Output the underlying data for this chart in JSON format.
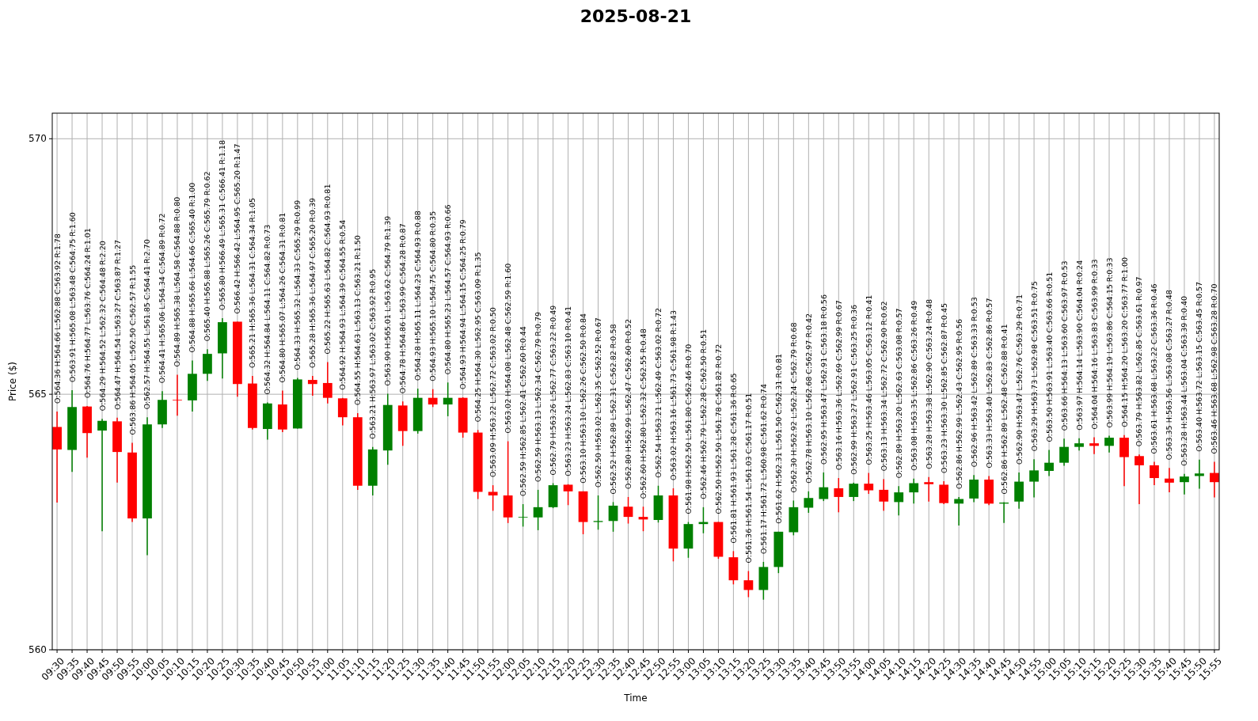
{
  "chart_data": {
    "type": "candlestick",
    "title": "2025-08-21",
    "xlabel": "Time",
    "ylabel": "Price ($)",
    "ylim": [
      560,
      570.5
    ],
    "yticks": [
      560,
      565,
      570
    ],
    "grid": true,
    "categories": [
      "09:30",
      "09:35",
      "09:40",
      "09:45",
      "09:50",
      "09:55",
      "10:00",
      "10:05",
      "10:10",
      "10:15",
      "10:20",
      "10:25",
      "10:30",
      "10:35",
      "10:40",
      "10:45",
      "10:50",
      "10:55",
      "11:00",
      "11:05",
      "11:10",
      "11:15",
      "11:20",
      "11:25",
      "11:30",
      "11:35",
      "11:40",
      "11:45",
      "11:50",
      "11:55",
      "12:00",
      "12:05",
      "12:10",
      "12:15",
      "12:20",
      "12:25",
      "12:30",
      "12:35",
      "12:40",
      "12:45",
      "12:50",
      "12:55",
      "13:00",
      "13:05",
      "13:10",
      "13:15",
      "13:20",
      "13:25",
      "13:30",
      "13:35",
      "13:40",
      "13:45",
      "13:50",
      "13:55",
      "14:00",
      "14:05",
      "14:10",
      "14:15",
      "14:20",
      "14:25",
      "14:30",
      "14:35",
      "14:40",
      "14:45",
      "14:50",
      "14:55",
      "15:00",
      "15:05",
      "15:10",
      "15:15",
      "15:20",
      "15:25",
      "15:30",
      "15:35",
      "15:40",
      "15:45",
      "15:50",
      "15:55"
    ],
    "ohlc": [
      [
        564.36,
        564.66,
        562.88,
        563.92
      ],
      [
        563.91,
        565.08,
        563.48,
        564.75
      ],
      [
        564.76,
        564.77,
        563.76,
        564.24
      ],
      [
        564.29,
        564.52,
        562.32,
        564.48
      ],
      [
        564.47,
        564.54,
        563.27,
        563.87
      ],
      [
        563.86,
        564.05,
        562.5,
        562.57
      ],
      [
        562.57,
        564.55,
        561.85,
        564.41
      ],
      [
        564.41,
        565.06,
        564.34,
        564.89
      ],
      [
        564.89,
        565.38,
        564.58,
        564.88
      ],
      [
        564.88,
        565.66,
        564.66,
        565.4
      ],
      [
        565.4,
        565.88,
        565.26,
        565.79
      ],
      [
        565.8,
        566.49,
        565.31,
        566.41
      ],
      [
        566.42,
        566.42,
        564.95,
        565.2
      ],
      [
        565.21,
        565.36,
        564.31,
        564.34
      ],
      [
        564.32,
        564.84,
        564.11,
        564.82
      ],
      [
        564.8,
        565.07,
        564.26,
        564.31
      ],
      [
        564.33,
        565.32,
        564.33,
        565.29
      ],
      [
        565.28,
        565.36,
        564.97,
        565.2
      ],
      [
        565.22,
        565.63,
        564.82,
        564.93
      ],
      [
        564.92,
        564.93,
        564.39,
        564.55
      ],
      [
        564.55,
        564.63,
        563.13,
        563.21
      ],
      [
        563.21,
        563.97,
        563.02,
        563.92
      ],
      [
        563.9,
        565.01,
        563.62,
        564.79
      ],
      [
        564.78,
        564.86,
        563.99,
        564.28
      ],
      [
        564.28,
        565.11,
        564.23,
        564.93
      ],
      [
        564.93,
        565.1,
        564.75,
        564.8
      ],
      [
        564.8,
        565.23,
        564.57,
        564.93
      ],
      [
        564.93,
        564.94,
        564.15,
        564.25
      ],
      [
        564.25,
        564.3,
        562.95,
        563.09
      ],
      [
        563.09,
        563.22,
        562.72,
        563.02
      ],
      [
        563.02,
        564.08,
        562.48,
        562.59
      ],
      [
        562.59,
        562.85,
        562.41,
        562.6
      ],
      [
        562.59,
        563.13,
        562.34,
        562.79
      ],
      [
        562.79,
        563.26,
        562.77,
        563.22
      ],
      [
        563.23,
        563.24,
        562.83,
        563.1
      ],
      [
        563.1,
        563.1,
        562.26,
        562.5
      ],
      [
        562.5,
        563.02,
        562.35,
        562.52
      ],
      [
        562.52,
        562.89,
        562.31,
        562.82
      ],
      [
        562.8,
        562.99,
        562.47,
        562.6
      ],
      [
        562.6,
        562.8,
        562.32,
        562.55
      ],
      [
        562.54,
        563.21,
        562.49,
        563.02
      ],
      [
        563.02,
        563.16,
        561.73,
        561.98
      ],
      [
        561.98,
        562.5,
        561.8,
        562.46
      ],
      [
        562.46,
        562.79,
        562.28,
        562.5
      ],
      [
        562.5,
        562.5,
        561.78,
        561.82
      ],
      [
        561.81,
        561.93,
        561.28,
        561.36
      ],
      [
        561.36,
        561.54,
        561.03,
        561.17
      ],
      [
        561.17,
        561.72,
        560.98,
        561.62
      ],
      [
        561.62,
        562.31,
        561.5,
        562.31
      ],
      [
        562.3,
        562.92,
        562.24,
        562.79
      ],
      [
        562.78,
        563.1,
        562.68,
        562.97
      ],
      [
        562.95,
        563.47,
        562.91,
        563.18
      ],
      [
        563.16,
        563.36,
        562.69,
        562.99
      ],
      [
        562.99,
        563.27,
        562.91,
        563.25
      ],
      [
        563.25,
        563.46,
        563.05,
        563.12
      ],
      [
        563.13,
        563.34,
        562.72,
        562.9
      ],
      [
        562.89,
        563.2,
        562.63,
        563.08
      ],
      [
        563.08,
        563.35,
        562.86,
        563.26
      ],
      [
        563.28,
        563.38,
        562.9,
        563.24
      ],
      [
        563.23,
        563.3,
        562.85,
        562.87
      ],
      [
        562.86,
        562.99,
        562.43,
        562.95
      ],
      [
        562.96,
        563.42,
        562.89,
        563.33
      ],
      [
        563.33,
        563.4,
        562.83,
        562.86
      ],
      [
        562.86,
        562.89,
        562.48,
        562.88
      ],
      [
        562.9,
        563.47,
        562.76,
        563.29
      ],
      [
        563.29,
        563.73,
        562.98,
        563.51
      ],
      [
        563.5,
        563.91,
        563.4,
        563.66
      ],
      [
        563.66,
        564.13,
        563.6,
        563.97
      ],
      [
        563.97,
        564.14,
        563.9,
        564.04
      ],
      [
        564.04,
        564.16,
        563.83,
        563.99
      ],
      [
        563.99,
        564.19,
        563.86,
        564.15
      ],
      [
        564.15,
        564.2,
        563.2,
        563.77
      ],
      [
        563.79,
        563.82,
        562.85,
        563.61
      ],
      [
        563.61,
        563.68,
        563.22,
        563.36
      ],
      [
        563.35,
        563.56,
        563.08,
        563.27
      ],
      [
        563.28,
        563.44,
        563.04,
        563.39
      ],
      [
        563.4,
        563.72,
        563.15,
        563.45
      ],
      [
        563.46,
        563.68,
        562.98,
        563.28
      ]
    ],
    "colors": [
      "#ff0000",
      "#008000",
      "#ff0000",
      "#008000",
      "#ff0000",
      "#ff0000",
      "#008000",
      "#008000",
      "#ff0000",
      "#008000",
      "#008000",
      "#008000",
      "#ff0000",
      "#ff0000",
      "#008000",
      "#ff0000",
      "#008000",
      "#ff0000",
      "#ff0000",
      "#ff0000",
      "#ff0000",
      "#008000",
      "#008000",
      "#ff0000",
      "#008000",
      "#ff0000",
      "#008000",
      "#ff0000",
      "#ff0000",
      "#ff0000",
      "#ff0000",
      "#008000",
      "#008000",
      "#008000",
      "#ff0000",
      "#ff0000",
      "#008000",
      "#008000",
      "#ff0000",
      "#ff0000",
      "#008000",
      "#ff0000",
      "#008000",
      "#008000",
      "#ff0000",
      "#ff0000",
      "#ff0000",
      "#008000",
      "#008000",
      "#008000",
      "#008000",
      "#008000",
      "#ff0000",
      "#008000",
      "#ff0000",
      "#ff0000",
      "#008000",
      "#008000",
      "#ff0000",
      "#ff0000",
      "#008000",
      "#008000",
      "#ff0000",
      "#008000",
      "#008000",
      "#008000",
      "#008000",
      "#008000",
      "#008000",
      "#ff0000",
      "#008000",
      "#ff0000",
      "#ff0000",
      "#ff0000",
      "#ff0000",
      "#008000",
      "#008000",
      "#ff0000"
    ],
    "value_labels": [
      "O:564.36 H:564.66 L:562.88 C:563.92 R:1.78",
      "O:563.91 H:565.08 L:563.48 C:564.75 R:1.60",
      "O:564.76 H:564.77 L:563.76 C:564.24 R:1.01",
      "O:564.29 H:564.52 L:562.32 C:564.48 R:2.20",
      "O:564.47 H:564.54 L:563.27 C:563.87 R:1.27",
      "O:563.86 H:564.05 L:562.50 C:562.57 R:1.55",
      "O:562.57 H:564.55 L:561.85 C:564.41 R:2.70",
      "O:564.41 H:565.06 L:564.34 C:564.89 R:0.72",
      "O:564.89 H:565.38 L:564.58 C:564.88 R:0.80",
      "O:564.88 H:565.66 L:564.66 C:565.40 R:1.00",
      "O:565.40 H:565.88 L:565.26 C:565.79 R:0.62",
      "O:565.80 H:566.49 L:565.31 C:566.41 R:1.18",
      "O:566.42 H:566.42 L:564.95 C:565.20 R:1.47",
      "O:565.21 H:565.36 L:564.31 C:564.34 R:1.05",
      "O:564.32 H:564.84 L:564.11 C:564.82 R:0.73",
      "O:564.80 H:565.07 L:564.26 C:564.31 R:0.81",
      "O:564.33 H:565.32 L:564.33 C:565.29 R:0.99",
      "O:565.28 H:565.36 L:564.97 C:565.20 R:0.39",
      "O:565.22 H:565.63 L:564.82 C:564.93 R:0.81",
      "O:564.92 H:564.93 L:564.39 C:564.55 R:0.54",
      "O:564.55 H:564.63 L:563.13 C:563.21 R:1.50",
      "O:563.21 H:563.97 L:563.02 C:563.92 R:0.95",
      "O:563.90 H:565.01 L:563.62 C:564.79 R:1.39",
      "O:564.78 H:564.86 L:563.99 C:564.28 R:0.87",
      "O:564.28 H:565.11 L:564.23 C:564.93 R:0.88",
      "O:564.93 H:565.10 L:564.75 C:564.80 R:0.35",
      "O:564.80 H:565.23 L:564.57 C:564.93 R:0.66",
      "O:564.93 H:564.94 L:564.15 C:564.25 R:0.79",
      "O:564.25 H:564.30 L:562.95 C:563.09 R:1.35",
      "O:563.09 H:563.22 L:562.72 C:563.02 R:0.50",
      "O:563.02 H:564.08 L:562.48 C:562.59 R:1.60",
      "O:562.59 H:562.85 L:562.41 C:562.60 R:0.44",
      "O:562.59 H:563.13 L:562.34 C:562.79 R:0.79",
      "O:562.79 H:563.26 L:562.77 C:563.22 R:0.49",
      "O:563.23 H:563.24 L:562.83 C:563.10 R:0.41",
      "O:563.10 H:563.10 L:562.26 C:562.50 R:0.84",
      "O:562.50 H:563.02 L:562.35 C:562.52 R:0.67",
      "O:562.52 H:562.89 L:562.31 C:562.82 R:0.58",
      "O:562.80 H:562.99 L:562.47 C:562.60 R:0.52",
      "O:562.60 H:562.80 L:562.32 C:562.55 R:0.48",
      "O:562.54 H:563.21 L:562.49 C:563.02 R:0.72",
      "O:563.02 H:563.16 L:561.73 C:561.98 R:1.43",
      "O:561.98 H:562.50 L:561.80 C:562.46 R:0.70",
      "O:562.46 H:562.79 L:562.28 C:562.50 R:0.51",
      "O:562.50 H:562.50 L:561.78 C:561.82 R:0.72",
      "O:561.81 H:561.93 L:561.28 C:561.36 R:0.65",
      "O:561.36 H:561.54 L:561.03 C:561.17 R:0.51",
      "O:561.17 H:561.72 L:560.98 C:561.62 R:0.74",
      "O:561.62 H:562.31 L:561.50 C:562.31 R:0.81",
      "O:562.30 H:562.92 L:562.24 C:562.79 R:0.68",
      "O:562.78 H:563.10 L:562.68 C:562.97 R:0.42",
      "O:562.95 H:563.47 L:562.91 C:563.18 R:0.56",
      "O:563.16 H:563.36 L:562.69 C:562.99 R:0.67",
      "O:562.99 H:563.27 L:562.91 C:563.25 R:0.36",
      "O:563.25 H:563.46 L:563.05 C:563.12 R:0.41",
      "O:563.13 H:563.34 L:562.72 C:562.90 R:0.62",
      "O:562.89 H:563.20 L:562.63 C:563.08 R:0.57",
      "O:563.08 H:563.35 L:562.86 C:563.26 R:0.49",
      "O:563.28 H:563.38 L:562.90 C:563.24 R:0.48",
      "O:563.23 H:563.30 L:562.85 C:562.87 R:0.45",
      "O:562.86 H:562.99 L:562.43 C:562.95 R:0.56",
      "O:562.96 H:563.42 L:562.89 C:563.33 R:0.53",
      "O:563.33 H:563.40 L:562.83 C:562.86 R:0.57",
      "O:562.86 H:562.89 L:562.48 C:562.88 R:0.41",
      "O:562.90 H:563.47 L:562.76 C:563.29 R:0.71",
      "O:563.29 H:563.73 L:562.98 C:563.51 R:0.75",
      "O:563.50 H:563.91 L:563.40 C:563.66 R:0.51",
      "O:563.66 H:564.13 L:563.60 C:563.97 R:0.53",
      "O:563.97 H:564.14 L:563.90 C:564.04 R:0.24",
      "O:564.04 H:564.16 L:563.83 C:563.99 R:0.33",
      "O:563.99 H:564.19 L:563.86 C:564.15 R:0.33",
      "O:564.15 H:564.20 L:563.20 C:563.77 R:1.00",
      "O:563.79 H:563.82 L:562.85 C:563.61 R:0.97",
      "O:563.61 H:563.68 L:563.22 C:563.36 R:0.46",
      "O:563.35 H:563.56 L:563.08 C:563.27 R:0.48",
      "O:563.28 H:563.44 L:563.04 C:563.39 R:0.40",
      "O:563.40 H:563.72 L:563.15 C:563.45 R:0.57",
      "O:563.46 H:563.68 L:562.98 C:563.28 R:0.70"
    ]
  }
}
